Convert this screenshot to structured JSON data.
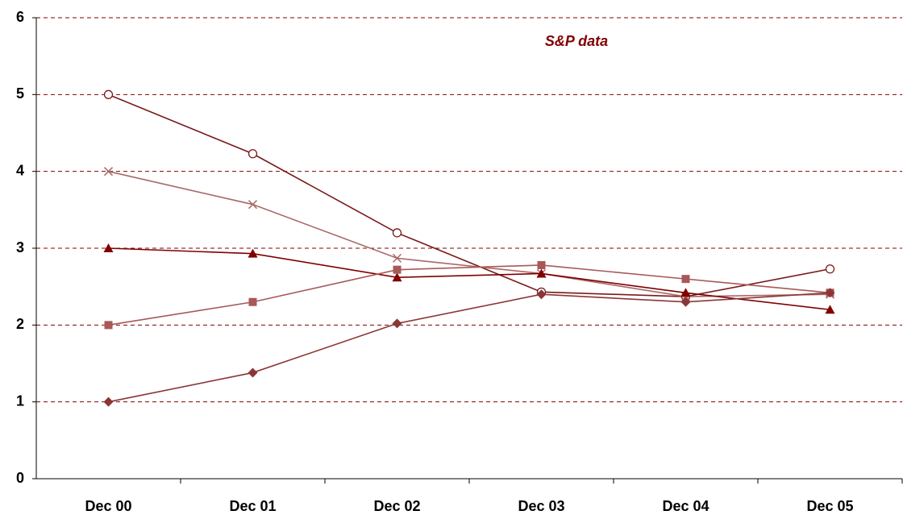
{
  "chart_data": {
    "type": "line",
    "title": "S&P data",
    "categories": [
      "Dec 00",
      "Dec 01",
      "Dec 02",
      "Dec 03",
      "Dec 04",
      "Dec 05"
    ],
    "series": [
      {
        "color": "#7a1a1a",
        "marker": "circle",
        "values": [
          5,
          4.23,
          3.2,
          2.43,
          2.37,
          2.73
        ]
      },
      {
        "color": "#a86868",
        "marker": "cross",
        "values": [
          4,
          3.57,
          2.87,
          2.67,
          2.37,
          2.4
        ]
      },
      {
        "color": "#800000",
        "marker": "triangle",
        "values": [
          3,
          2.93,
          2.62,
          2.67,
          2.42,
          2.2
        ]
      },
      {
        "color": "#a85858",
        "marker": "square",
        "values": [
          2,
          2.3,
          2.72,
          2.78,
          2.6,
          2.42
        ]
      },
      {
        "color": "#8b3636",
        "marker": "diamond",
        "values": [
          1,
          1.38,
          2.02,
          2.4,
          2.3,
          2.42
        ]
      }
    ],
    "ylim": [
      0,
      6
    ],
    "yticks": [
      0,
      1,
      2,
      3,
      4,
      5,
      6
    ],
    "grid": true
  }
}
